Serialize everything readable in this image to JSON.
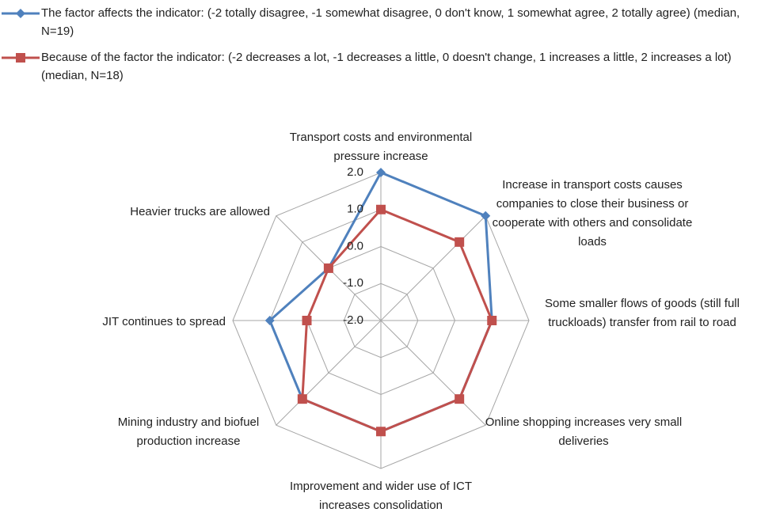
{
  "chart_data": {
    "type": "radar",
    "categories": [
      "Transport costs and environmental pressure increase",
      "Increase in transport costs causes companies to close their business or cooperate with others and consolidate loads",
      "Some smaller flows of goods (still full truckloads) transfer from rail to road",
      "Online shopping increases very small deliveries",
      "Improvement and wider use of ICT increases consolidation",
      "Mining industry and biofuel production increase",
      "JIT continues to spread",
      "Heavier trucks are allowed"
    ],
    "series": [
      {
        "name": "The factor affects the indicator: (-2 totally disagree, -1 somewhat disagree, 0 don't know, 1 somewhat agree, 2 totally agree) (median, N=19)",
        "color": "#4f81bd",
        "marker": "diamond",
        "values": [
          2,
          2,
          1,
          1,
          1,
          1,
          1,
          0
        ]
      },
      {
        "name": "Because of the factor the indicator: (-2 decreases a lot, -1 decreases a little, 0 doesn't change, 1 increases a little, 2 increases a lot) (median, N=18)",
        "color": "#c0504d",
        "marker": "square",
        "values": [
          1,
          1,
          1,
          1,
          1,
          1,
          0,
          0
        ]
      }
    ],
    "ylim": [
      -2,
      2
    ],
    "yticks": [
      {
        "value": -2,
        "label": "-2.0"
      },
      {
        "value": -1,
        "label": "-1.0"
      },
      {
        "value": 0,
        "label": "0.0"
      },
      {
        "value": 1,
        "label": "1.0"
      },
      {
        "value": 2,
        "label": "2.0"
      }
    ],
    "grid": true,
    "legend": "top"
  }
}
